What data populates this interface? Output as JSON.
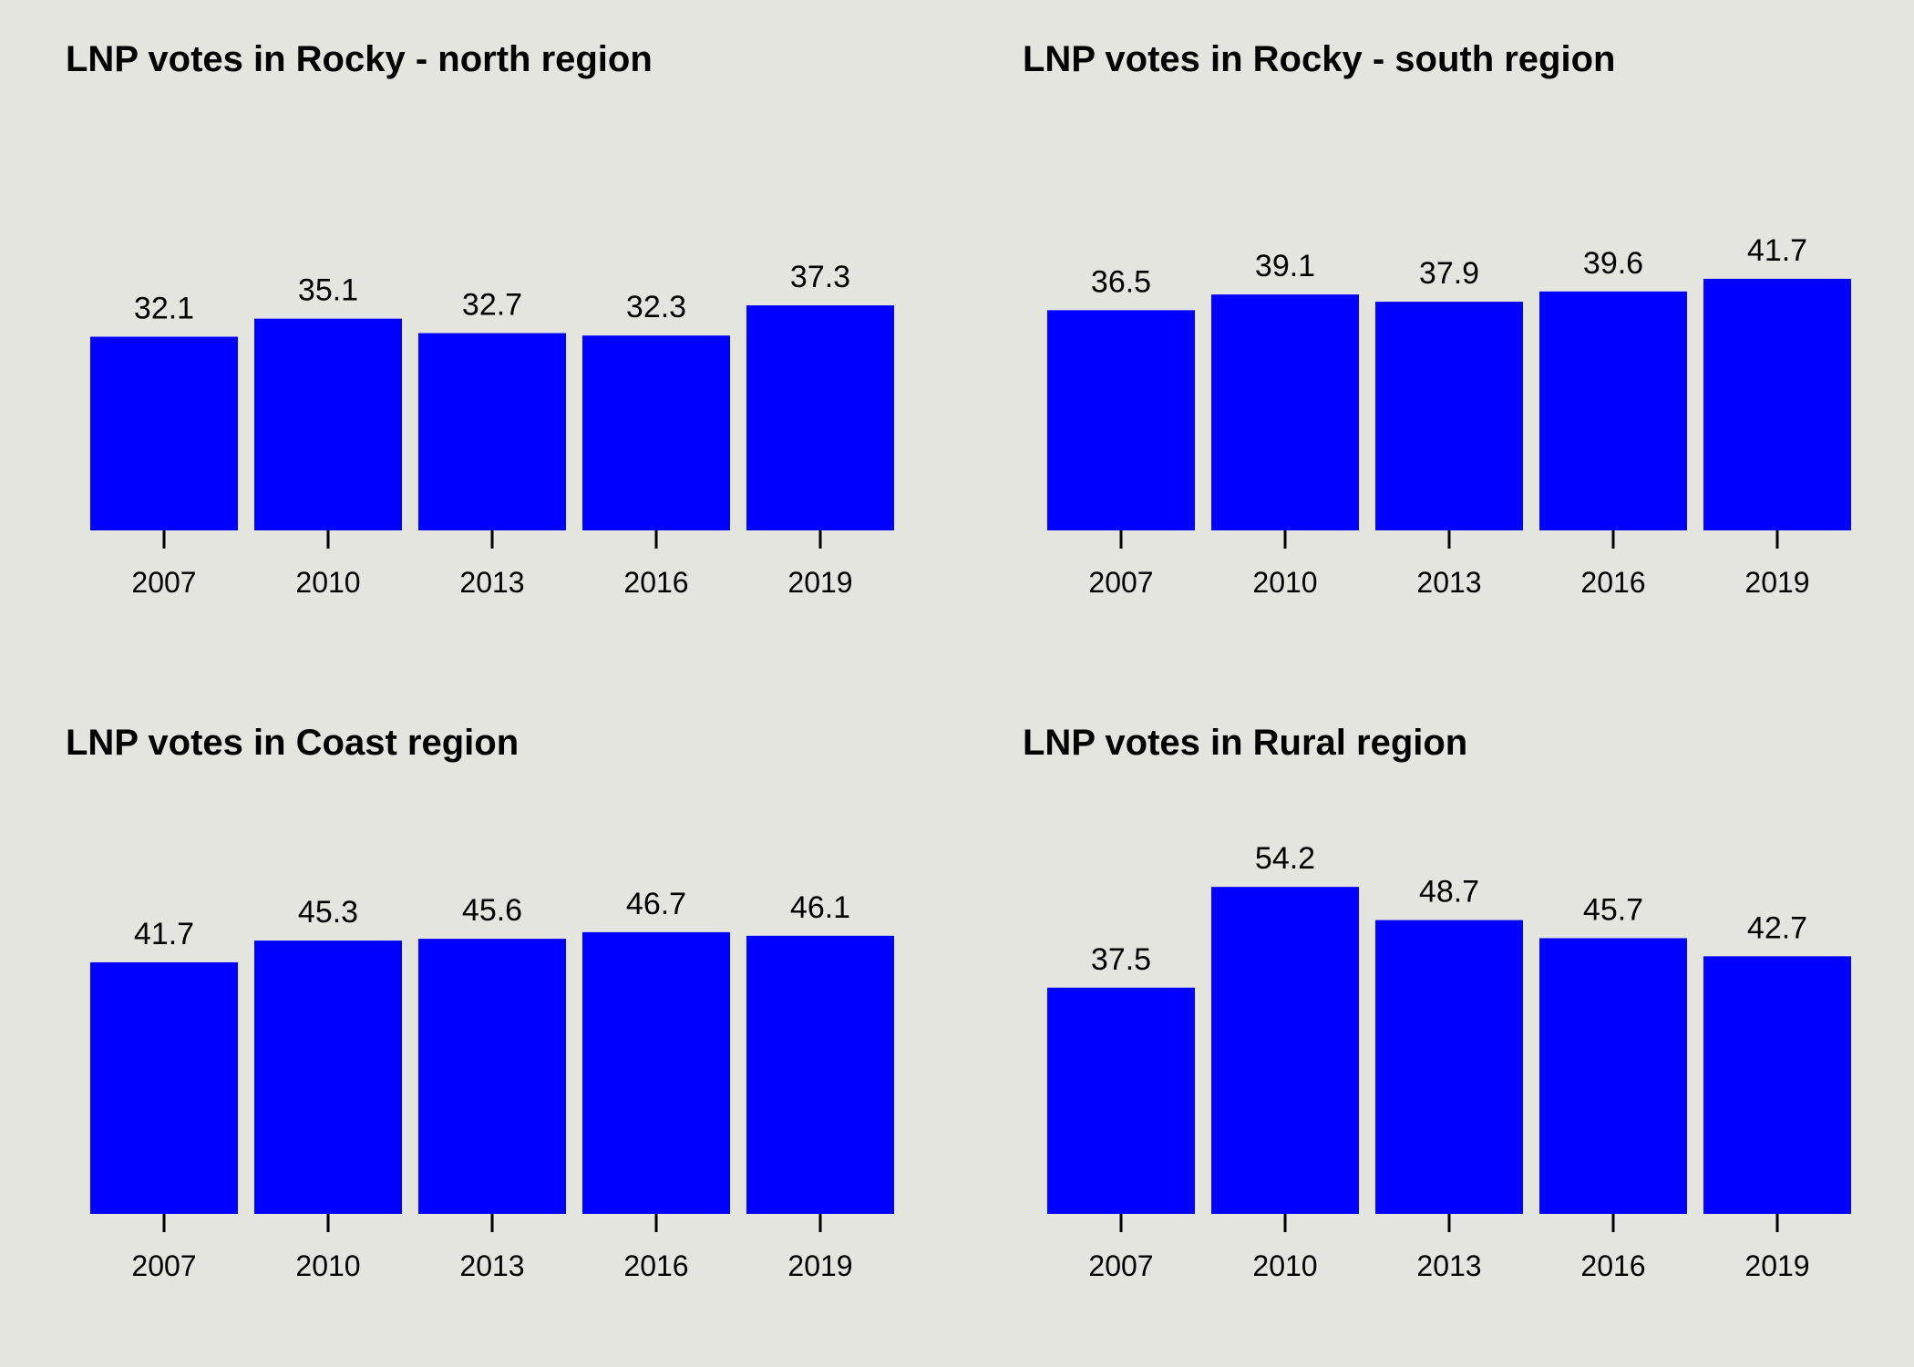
{
  "colors": {
    "background": "#E5E5E0",
    "bar": "#0000FF",
    "text": "#000000"
  },
  "chart_data": [
    {
      "type": "bar",
      "title": "LNP votes in Rocky - north region",
      "xlabel": "",
      "ylabel": "",
      "categories": [
        "2007",
        "2010",
        "2013",
        "2016",
        "2019"
      ],
      "values": [
        32.1,
        35.1,
        32.7,
        32.3,
        37.3
      ],
      "ylim": [
        0,
        60
      ],
      "grid": false,
      "legend": "none"
    },
    {
      "type": "bar",
      "title": "LNP votes in Rocky - south region",
      "xlabel": "",
      "ylabel": "",
      "categories": [
        "2007",
        "2010",
        "2013",
        "2016",
        "2019"
      ],
      "values": [
        36.5,
        39.1,
        37.9,
        39.6,
        41.7
      ],
      "ylim": [
        0,
        60
      ],
      "grid": false,
      "legend": "none"
    },
    {
      "type": "bar",
      "title": "LNP votes in Coast region",
      "xlabel": "",
      "ylabel": "",
      "categories": [
        "2007",
        "2010",
        "2013",
        "2016",
        "2019"
      ],
      "values": [
        41.7,
        45.3,
        45.6,
        46.7,
        46.1
      ],
      "ylim": [
        0,
        60
      ],
      "grid": false,
      "legend": "none"
    },
    {
      "type": "bar",
      "title": "LNP votes in Rural region",
      "xlabel": "",
      "ylabel": "",
      "categories": [
        "2007",
        "2010",
        "2013",
        "2016",
        "2019"
      ],
      "values": [
        37.5,
        54.2,
        48.7,
        45.7,
        42.7
      ],
      "ylim": [
        0,
        60
      ],
      "grid": false,
      "legend": "none"
    }
  ]
}
